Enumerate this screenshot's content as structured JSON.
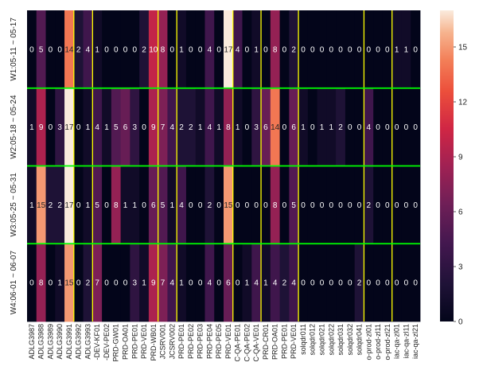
{
  "chart_data": {
    "type": "heatmap",
    "colormap": "rocket",
    "row_labels": [
      "W1:05-11 ~ 05-17",
      "W2:05-18 ~ 05-24",
      "W3:05-25 ~ 05-31",
      "W4:06-01 ~ 06-07"
    ],
    "column_labels": [
      "ADLG3987",
      "ADLG3988",
      "ADLG3989",
      "ADLG3990",
      "ADLG3991",
      "ADLG3992",
      "ADLG3993",
      "-DEV-KF01",
      "-DEV-PE02",
      "PRD-GW01",
      "PRD-OA01",
      "PRD-PE01",
      "PRD-VE01",
      "PRD-WB01",
      "JCSRV001",
      "JCSRV002",
      "PRD-PE01",
      "PRD-PE02",
      "PRD-PE03",
      "PRD-PE04",
      "PRD-PE05",
      "PRD-VE01",
      "C-QA-PE01",
      "C-QA-PE02",
      "C-QA-VE01",
      "PRD-CR01",
      "PRD-OA01",
      "PRD-PE01",
      "PRD-VE01",
      "solqdr011",
      "solqdr012",
      "solqdr021",
      "solqdr022",
      "solqdr031",
      "solqdr032",
      "solqdr041",
      "o-prod-zl01",
      "o-prod-zl11",
      "o-prod-zl21",
      "iac-qa-zl01",
      "iac-qa-zl11",
      "iac-qa-zl21"
    ],
    "values": [
      [
        0,
        5,
        0,
        0,
        14,
        2,
        4,
        1,
        0,
        0,
        0,
        0,
        2,
        10,
        8,
        0,
        1,
        0,
        0,
        4,
        0,
        17,
        4,
        0,
        1,
        0,
        8,
        0,
        2,
        0,
        0,
        0,
        0,
        0,
        0,
        0,
        0,
        0,
        0,
        1,
        1,
        0
      ],
      [
        1,
        9,
        0,
        3,
        17,
        0,
        1,
        4,
        1,
        5,
        6,
        3,
        0,
        9,
        7,
        4,
        2,
        2,
        1,
        4,
        1,
        8,
        1,
        0,
        3,
        6,
        14,
        0,
        6,
        1,
        0,
        1,
        1,
        2,
        0,
        0,
        4,
        0,
        0,
        0,
        0,
        0
      ],
      [
        1,
        15,
        2,
        2,
        17,
        0,
        1,
        5,
        0,
        8,
        1,
        1,
        0,
        6,
        5,
        1,
        4,
        0,
        0,
        2,
        0,
        15,
        0,
        0,
        0,
        0,
        8,
        0,
        5,
        0,
        0,
        0,
        0,
        0,
        0,
        0,
        2,
        0,
        0,
        0,
        0,
        0
      ],
      [
        0,
        8,
        0,
        1,
        15,
        0,
        2,
        7,
        0,
        0,
        0,
        3,
        1,
        9,
        7,
        4,
        1,
        0,
        0,
        4,
        0,
        6,
        0,
        1,
        4,
        1,
        4,
        2,
        4,
        0,
        0,
        0,
        0,
        0,
        0,
        2,
        0,
        0,
        0,
        0,
        0,
        0
      ]
    ],
    "vmin": 0,
    "vmax": 17,
    "colorbar_ticks": [
      0,
      3,
      6,
      9,
      12,
      15
    ],
    "group_separators_after_column": [
      4,
      6,
      13,
      15,
      21,
      24,
      28,
      35,
      38
    ],
    "row_separators": true,
    "separator_colors": {
      "columns": "#ffff00",
      "rows": "#00ff00"
    }
  }
}
